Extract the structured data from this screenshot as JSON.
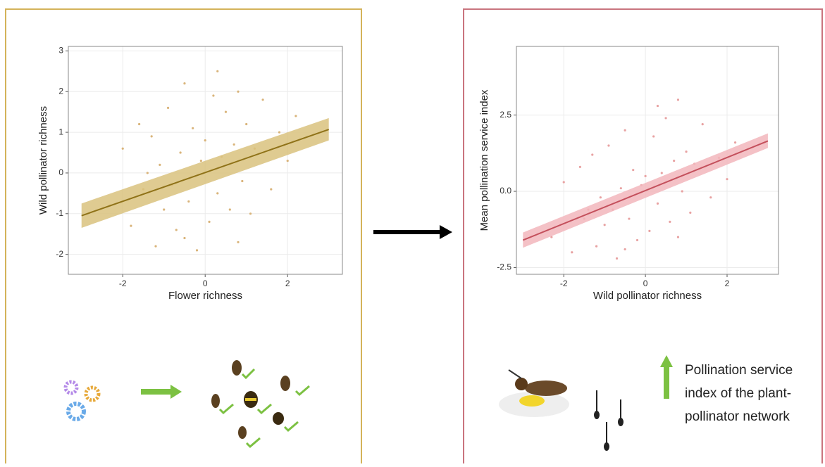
{
  "chart_data": [
    {
      "type": "scatter",
      "x_label": "Flower richness",
      "y_label": "Wild pollinator richness",
      "xlim": [
        -3.32,
        3.33
      ],
      "ylim": [
        -2.49,
        3.11
      ],
      "xticks": [
        -2,
        0,
        2
      ],
      "yticks": [
        -2,
        -1,
        0,
        1,
        2,
        3
      ],
      "grid": true,
      "color": "#d9b47a",
      "line_color": "#8f7218",
      "band_color": "#d9c27e",
      "x": [
        -2.3,
        -2.0,
        -1.8,
        -1.6,
        -1.5,
        -1.3,
        -1.2,
        -1.1,
        -1.0,
        -0.9,
        -0.8,
        -0.7,
        -0.6,
        -0.5,
        -0.4,
        -0.3,
        -0.2,
        -0.1,
        0.0,
        0.1,
        0.2,
        0.3,
        0.4,
        0.5,
        0.6,
        0.7,
        0.8,
        0.9,
        1.0,
        1.1,
        1.2,
        1.4,
        1.6,
        1.8,
        2.0,
        2.2,
        -0.5,
        0.3,
        -1.4,
        0.8
      ],
      "values": [
        -0.8,
        0.6,
        -1.3,
        1.2,
        -0.4,
        0.9,
        -1.8,
        0.2,
        -0.9,
        1.6,
        -0.3,
        -1.4,
        0.5,
        2.2,
        -0.7,
        1.1,
        -1.9,
        0.3,
        0.8,
        -1.2,
        1.9,
        -0.5,
        0.4,
        1.5,
        -0.9,
        0.7,
        2.0,
        -0.2,
        1.2,
        -1.0,
        0.6,
        1.8,
        -0.4,
        1.0,
        0.3,
        1.4,
        -1.6,
        2.5,
        0.0,
        -1.7
      ],
      "fit": {
        "x": [
          -3,
          3
        ],
        "values": [
          -1.05,
          1.07
        ],
        "lower": [
          -1.35,
          0.8
        ],
        "upper": [
          -0.75,
          1.35
        ]
      }
    },
    {
      "type": "scatter",
      "x_label": "Wild pollinator richness",
      "y_label": "Mean pollination service index",
      "xlim": [
        -3.16,
        3.26
      ],
      "ylim": [
        -2.72,
        4.75
      ],
      "xticks": [
        -2,
        0,
        2
      ],
      "yticks": [
        -2.5,
        {
          "value": 0,
          "label": "0.0"
        },
        2.5
      ],
      "grid": true,
      "color": "#e8a2a2",
      "line_color": "#c4505c",
      "band_color": "#f2b6bc",
      "x": [
        -2.3,
        -2.0,
        -1.8,
        -1.6,
        -1.5,
        -1.3,
        -1.2,
        -1.1,
        -1.0,
        -0.9,
        -0.8,
        -0.7,
        -0.6,
        -0.5,
        -0.4,
        -0.3,
        -0.2,
        -0.1,
        0.0,
        0.1,
        0.2,
        0.3,
        0.4,
        0.5,
        0.6,
        0.7,
        0.8,
        0.9,
        1.0,
        1.1,
        1.2,
        1.4,
        1.6,
        1.8,
        2.0,
        2.2,
        -0.5,
        0.3,
        -1.4,
        0.8
      ],
      "values": [
        -1.5,
        0.3,
        -2.0,
        0.8,
        -0.9,
        1.2,
        -1.8,
        -0.2,
        -1.1,
        1.5,
        -0.6,
        -2.2,
        0.1,
        2.0,
        -0.9,
        0.7,
        -1.6,
        0.2,
        0.5,
        -1.3,
        1.8,
        -0.4,
        0.6,
        2.4,
        -1.0,
        1.0,
        3.0,
        0.0,
        1.3,
        -0.7,
        0.9,
        2.2,
        -0.2,
        1.1,
        0.4,
        1.6,
        -1.9,
        2.8,
        -0.6,
        -1.5
      ],
      "fit": {
        "x": [
          -3,
          3
        ],
        "values": [
          -1.6,
          1.65
        ],
        "lower": [
          -1.85,
          1.42
        ],
        "upper": [
          -1.35,
          1.9
        ]
      }
    }
  ],
  "note": {
    "lines": [
      "Pollination service",
      "index of the plant-",
      "pollinator network"
    ]
  }
}
